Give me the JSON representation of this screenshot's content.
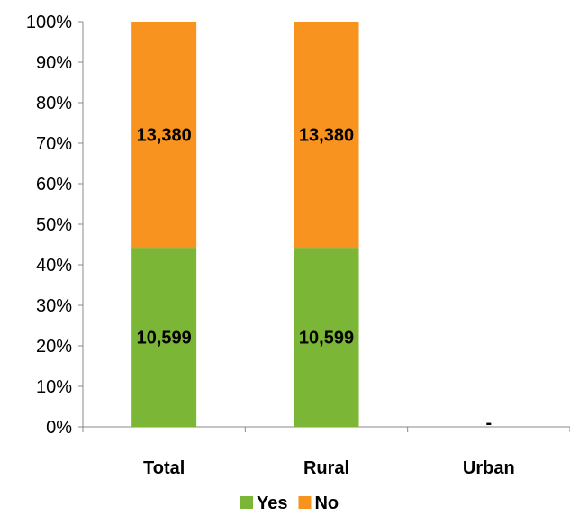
{
  "chart_data": {
    "type": "bar",
    "stacked": true,
    "normalized": true,
    "categories": [
      "Total",
      "Rural",
      "Urban"
    ],
    "series": [
      {
        "name": "Yes",
        "color": "#7cb636",
        "values": [
          10599,
          10599,
          0
        ],
        "labels": [
          "10,599",
          "10,599",
          "-"
        ]
      },
      {
        "name": "No",
        "color": "#f7931e",
        "values": [
          13380,
          13380,
          0
        ],
        "labels": [
          "13,380",
          "13,380",
          ""
        ]
      }
    ],
    "y_ticks": [
      "0%",
      "10%",
      "20%",
      "30%",
      "40%",
      "50%",
      "60%",
      "70%",
      "80%",
      "90%",
      "100%"
    ],
    "ylim": [
      0,
      100
    ],
    "grid": false,
    "legend_position": "bottom"
  }
}
